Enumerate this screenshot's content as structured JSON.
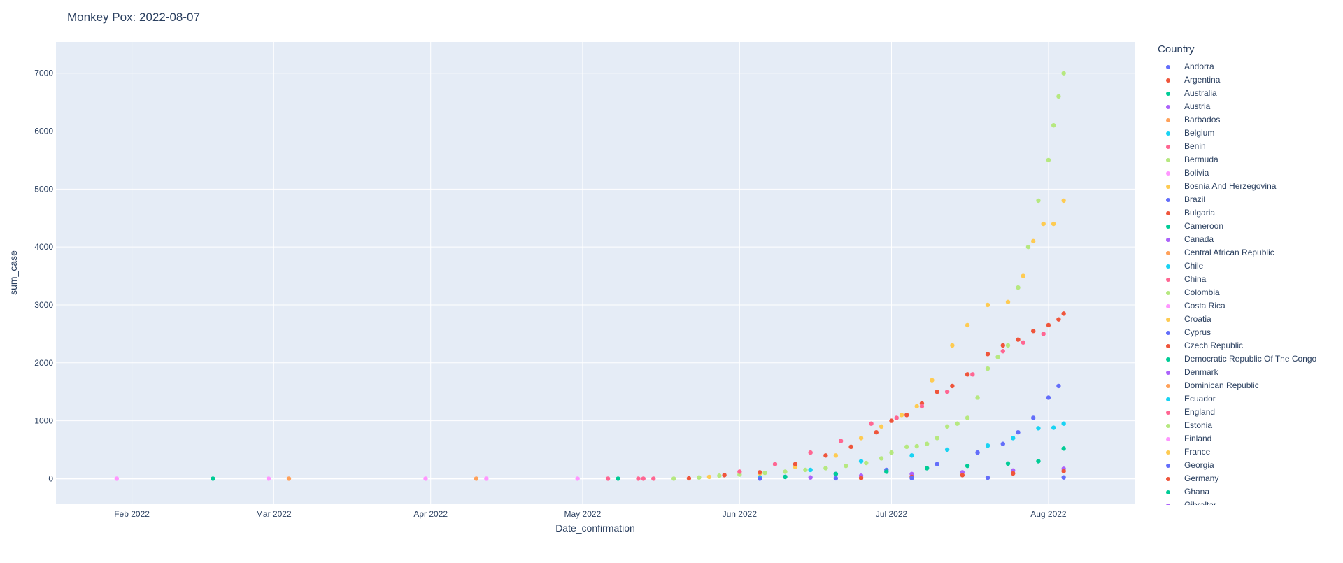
{
  "chart_data": {
    "type": "scatter",
    "title": "Monkey Pox: 2022-08-07",
    "xlabel": "Date_confirmation",
    "ylabel": "sum_case",
    "x_range": [
      "2022-01-17",
      "2022-08-18"
    ],
    "ylim": [
      -430,
      7540
    ],
    "x_tick_dates": [
      "2022-02-01",
      "2022-03-01",
      "2022-04-01",
      "2022-05-01",
      "2022-06-01",
      "2022-07-01",
      "2022-08-01"
    ],
    "x_tick_labels": [
      "Feb 2022",
      "Mar 2022",
      "Apr 2022",
      "May 2022",
      "Jun 2022",
      "Jul 2022",
      "Aug 2022"
    ],
    "y_ticks": [
      0,
      1000,
      2000,
      3000,
      4000,
      5000,
      6000,
      7000
    ],
    "y_tick_labels": [
      "0",
      "1000",
      "2000",
      "3000",
      "4000",
      "5000",
      "6000",
      "7000"
    ],
    "grid": true,
    "legend": {
      "title": "Country",
      "placement": "right",
      "entries": [
        {
          "name": "Andorra",
          "color": "#636efa"
        },
        {
          "name": "Argentina",
          "color": "#EF553B"
        },
        {
          "name": "Australia",
          "color": "#00cc96"
        },
        {
          "name": "Austria",
          "color": "#ab63fa"
        },
        {
          "name": "Barbados",
          "color": "#FFA15A"
        },
        {
          "name": "Belgium",
          "color": "#19d3f3"
        },
        {
          "name": "Benin",
          "color": "#FF6692"
        },
        {
          "name": "Bermuda",
          "color": "#B6E880"
        },
        {
          "name": "Bolivia",
          "color": "#FF97FF"
        },
        {
          "name": "Bosnia And Herzegovina",
          "color": "#FECB52"
        },
        {
          "name": "Brazil",
          "color": "#636efa"
        },
        {
          "name": "Bulgaria",
          "color": "#EF553B"
        },
        {
          "name": "Cameroon",
          "color": "#00cc96"
        },
        {
          "name": "Canada",
          "color": "#ab63fa"
        },
        {
          "name": "Central African Republic",
          "color": "#FFA15A"
        },
        {
          "name": "Chile",
          "color": "#19d3f3"
        },
        {
          "name": "China",
          "color": "#FF6692"
        },
        {
          "name": "Colombia",
          "color": "#B6E880"
        },
        {
          "name": "Costa Rica",
          "color": "#FF97FF"
        },
        {
          "name": "Croatia",
          "color": "#FECB52"
        },
        {
          "name": "Cyprus",
          "color": "#636efa"
        },
        {
          "name": "Czech Republic",
          "color": "#EF553B"
        },
        {
          "name": "Democratic Republic Of The Congo",
          "color": "#00cc96"
        },
        {
          "name": "Denmark",
          "color": "#ab63fa"
        },
        {
          "name": "Dominican Republic",
          "color": "#FFA15A"
        },
        {
          "name": "Ecuador",
          "color": "#19d3f3"
        },
        {
          "name": "England",
          "color": "#FF6692"
        },
        {
          "name": "Estonia",
          "color": "#B6E880"
        },
        {
          "name": "Finland",
          "color": "#FF97FF"
        },
        {
          "name": "France",
          "color": "#FECB52"
        },
        {
          "name": "Georgia",
          "color": "#636efa"
        },
        {
          "name": "Germany",
          "color": "#EF553B"
        },
        {
          "name": "Ghana",
          "color": "#00cc96"
        },
        {
          "name": "Gibraltar",
          "color": "#ab63fa"
        }
      ]
    },
    "series": [
      {
        "name": "Bolivia",
        "color": "#FF97FF",
        "points": [
          [
            "2022-01-29",
            0
          ],
          [
            "2022-02-28",
            0
          ],
          [
            "2022-03-31",
            0
          ],
          [
            "2022-04-12",
            0
          ],
          [
            "2022-04-30",
            0
          ]
        ]
      },
      {
        "name": "Cameroon",
        "color": "#00cc96",
        "points": [
          [
            "2022-02-17",
            0
          ],
          [
            "2022-05-08",
            0
          ]
        ]
      },
      {
        "name": "Barbados",
        "color": "#FFA15A",
        "points": [
          [
            "2022-03-04",
            0
          ],
          [
            "2022-04-10",
            0
          ]
        ]
      },
      {
        "name": "Benin",
        "color": "#FF6692",
        "points": [
          [
            "2022-05-06",
            0
          ],
          [
            "2022-05-12",
            0
          ],
          [
            "2022-05-13",
            0
          ],
          [
            "2022-05-15",
            0
          ]
        ]
      },
      {
        "name": "Colombia",
        "color": "#B6E880",
        "points": [
          [
            "2022-05-19",
            0
          ],
          [
            "2022-05-24",
            20
          ],
          [
            "2022-05-28",
            50
          ],
          [
            "2022-06-01",
            70
          ],
          [
            "2022-06-06",
            100
          ],
          [
            "2022-06-10",
            120
          ],
          [
            "2022-06-14",
            150
          ],
          [
            "2022-06-18",
            180
          ],
          [
            "2022-06-22",
            220
          ],
          [
            "2022-06-26",
            270
          ],
          [
            "2022-06-29",
            350
          ],
          [
            "2022-07-01",
            450
          ],
          [
            "2022-07-04",
            550
          ],
          [
            "2022-07-06",
            560
          ],
          [
            "2022-07-08",
            600
          ],
          [
            "2022-07-10",
            700
          ],
          [
            "2022-07-12",
            900
          ],
          [
            "2022-07-14",
            950
          ],
          [
            "2022-07-16",
            1050
          ],
          [
            "2022-07-18",
            1400
          ],
          [
            "2022-07-20",
            1900
          ],
          [
            "2022-07-22",
            2100
          ],
          [
            "2022-07-24",
            2300
          ],
          [
            "2022-07-26",
            3300
          ],
          [
            "2022-07-28",
            4000
          ],
          [
            "2022-07-30",
            4800
          ],
          [
            "2022-08-01",
            5500
          ],
          [
            "2022-08-02",
            6100
          ],
          [
            "2022-08-03",
            6600
          ],
          [
            "2022-08-04",
            7000
          ]
        ]
      },
      {
        "name": "France",
        "color": "#FECB52",
        "points": [
          [
            "2022-05-26",
            30
          ],
          [
            "2022-06-05",
            90
          ],
          [
            "2022-06-12",
            200
          ],
          [
            "2022-06-20",
            400
          ],
          [
            "2022-06-25",
            700
          ],
          [
            "2022-06-29",
            900
          ],
          [
            "2022-07-03",
            1100
          ],
          [
            "2022-07-06",
            1250
          ],
          [
            "2022-07-09",
            1700
          ],
          [
            "2022-07-13",
            2300
          ],
          [
            "2022-07-16",
            2650
          ],
          [
            "2022-07-20",
            3000
          ],
          [
            "2022-07-24",
            3050
          ],
          [
            "2022-07-27",
            3500
          ],
          [
            "2022-07-29",
            4100
          ],
          [
            "2022-07-31",
            4400
          ],
          [
            "2022-08-02",
            4400
          ],
          [
            "2022-08-04",
            4800
          ]
        ]
      },
      {
        "name": "Germany",
        "color": "#EF553B",
        "points": [
          [
            "2022-05-22",
            5
          ],
          [
            "2022-05-29",
            60
          ],
          [
            "2022-06-05",
            110
          ],
          [
            "2022-06-12",
            250
          ],
          [
            "2022-06-18",
            400
          ],
          [
            "2022-06-23",
            550
          ],
          [
            "2022-06-28",
            800
          ],
          [
            "2022-07-01",
            1000
          ],
          [
            "2022-07-04",
            1100
          ],
          [
            "2022-07-07",
            1300
          ],
          [
            "2022-07-10",
            1500
          ],
          [
            "2022-07-13",
            1600
          ],
          [
            "2022-07-16",
            1800
          ],
          [
            "2022-07-20",
            2150
          ],
          [
            "2022-07-23",
            2300
          ],
          [
            "2022-07-26",
            2400
          ],
          [
            "2022-07-29",
            2550
          ],
          [
            "2022-08-01",
            2650
          ],
          [
            "2022-08-03",
            2750
          ],
          [
            "2022-08-04",
            2850
          ]
        ]
      },
      {
        "name": "China",
        "color": "#FF6692",
        "points": [
          [
            "2022-06-01",
            120
          ],
          [
            "2022-06-08",
            250
          ],
          [
            "2022-06-15",
            450
          ],
          [
            "2022-06-21",
            650
          ],
          [
            "2022-06-27",
            950
          ],
          [
            "2022-07-02",
            1050
          ],
          [
            "2022-07-07",
            1250
          ],
          [
            "2022-07-12",
            1500
          ],
          [
            "2022-07-17",
            1800
          ],
          [
            "2022-07-23",
            2200
          ],
          [
            "2022-07-27",
            2350
          ],
          [
            "2022-07-31",
            2500
          ]
        ]
      },
      {
        "name": "Cyprus",
        "color": "#636efa",
        "points": [
          [
            "2022-06-10",
            30
          ],
          [
            "2022-06-20",
            80
          ],
          [
            "2022-06-30",
            150
          ],
          [
            "2022-07-10",
            250
          ],
          [
            "2022-07-18",
            450
          ],
          [
            "2022-07-23",
            600
          ],
          [
            "2022-07-26",
            800
          ],
          [
            "2022-07-29",
            1050
          ],
          [
            "2022-08-01",
            1400
          ],
          [
            "2022-08-03",
            1600
          ]
        ]
      },
      {
        "name": "Ecuador",
        "color": "#19d3f3",
        "points": [
          [
            "2022-06-05",
            20
          ],
          [
            "2022-06-15",
            150
          ],
          [
            "2022-06-25",
            300
          ],
          [
            "2022-07-05",
            400
          ],
          [
            "2022-07-12",
            500
          ],
          [
            "2022-07-20",
            570
          ],
          [
            "2022-07-25",
            700
          ],
          [
            "2022-07-30",
            870
          ],
          [
            "2022-08-02",
            880
          ],
          [
            "2022-08-04",
            950
          ]
        ]
      },
      {
        "name": "Ghana",
        "color": "#00cc96",
        "points": [
          [
            "2022-06-10",
            30
          ],
          [
            "2022-06-20",
            80
          ],
          [
            "2022-06-30",
            120
          ],
          [
            "2022-07-08",
            180
          ],
          [
            "2022-07-16",
            220
          ],
          [
            "2022-07-24",
            260
          ],
          [
            "2022-07-30",
            300
          ],
          [
            "2022-08-04",
            520
          ]
        ]
      },
      {
        "name": "Denmark",
        "color": "#ab63fa",
        "points": [
          [
            "2022-06-15",
            20
          ],
          [
            "2022-06-25",
            50
          ],
          [
            "2022-07-05",
            80
          ],
          [
            "2022-07-15",
            110
          ],
          [
            "2022-07-25",
            140
          ],
          [
            "2022-08-04",
            170
          ]
        ]
      },
      {
        "name": "Czech Republic",
        "color": "#EF553B",
        "points": [
          [
            "2022-06-25",
            10
          ],
          [
            "2022-07-05",
            30
          ],
          [
            "2022-07-15",
            60
          ],
          [
            "2022-07-25",
            90
          ],
          [
            "2022-08-04",
            130
          ]
        ]
      },
      {
        "name": "Andorra",
        "color": "#636efa",
        "points": [
          [
            "2022-06-05",
            0
          ],
          [
            "2022-06-20",
            5
          ],
          [
            "2022-07-05",
            10
          ],
          [
            "2022-07-20",
            15
          ],
          [
            "2022-08-04",
            20
          ]
        ]
      }
    ]
  }
}
